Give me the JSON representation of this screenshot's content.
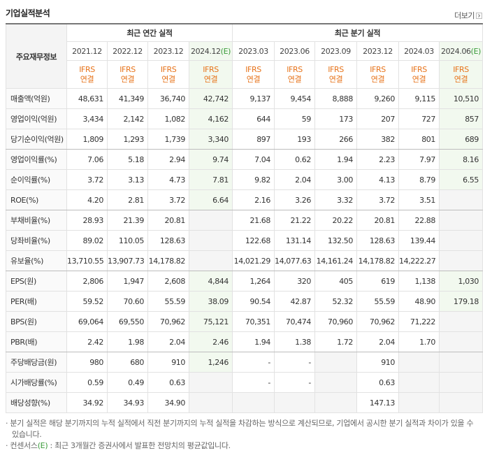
{
  "header": {
    "title": "기업실적분석",
    "more": "더보기"
  },
  "table": {
    "row_header": "주요재무정보",
    "groups": [
      {
        "label": "최근 연간 실적",
        "span": 4
      },
      {
        "label": "최근 분기 실적",
        "span": 6
      }
    ],
    "columns": [
      {
        "period": "2021.12",
        "standard": "IFRS",
        "scope": "연결"
      },
      {
        "period": "2022.12",
        "standard": "IFRS",
        "scope": "연결"
      },
      {
        "period": "2023.12",
        "standard": "IFRS",
        "scope": "연결"
      },
      {
        "period": "2024.12",
        "mark": "(E)",
        "standard": "IFRS",
        "scope": "연결"
      },
      {
        "period": "2023.03",
        "standard": "IFRS",
        "scope": "연결"
      },
      {
        "period": "2023.06",
        "standard": "IFRS",
        "scope": "연결"
      },
      {
        "period": "2023.09",
        "standard": "IFRS",
        "scope": "연결"
      },
      {
        "period": "2023.12",
        "standard": "IFRS",
        "scope": "연결"
      },
      {
        "period": "2024.03",
        "standard": "IFRS",
        "scope": "연결"
      },
      {
        "period": "2024.06",
        "mark": "(E)",
        "standard": "IFRS",
        "scope": "연결"
      }
    ],
    "rows": [
      {
        "label": "매출액(억원)",
        "values": [
          "48,631",
          "41,349",
          "36,740",
          "42,742",
          "9,137",
          "9,454",
          "8,888",
          "9,260",
          "9,115",
          "10,510"
        ]
      },
      {
        "label": "영업이익(억원)",
        "values": [
          "3,434",
          "2,142",
          "1,082",
          "4,162",
          "644",
          "59",
          "173",
          "207",
          "727",
          "857"
        ]
      },
      {
        "label": "당기순이익(억원)",
        "values": [
          "1,809",
          "1,293",
          "1,739",
          "3,340",
          "897",
          "193",
          "266",
          "382",
          "801",
          "689"
        ]
      },
      {
        "label": "영업이익률(%)",
        "values": [
          "7.06",
          "5.18",
          "2.94",
          "9.74",
          "7.04",
          "0.62",
          "1.94",
          "2.23",
          "7.97",
          "8.16"
        ]
      },
      {
        "label": "순이익률(%)",
        "values": [
          "3.72",
          "3.13",
          "4.73",
          "7.81",
          "9.82",
          "2.04",
          "3.00",
          "4.13",
          "8.79",
          "6.55"
        ]
      },
      {
        "label": "ROE(%)",
        "values": [
          "4.20",
          "2.81",
          "3.72",
          "6.64",
          "2.16",
          "3.26",
          "3.32",
          "3.72",
          "3.51",
          null
        ]
      },
      {
        "label": "부채비율(%)",
        "values": [
          "28.93",
          "21.39",
          "20.81",
          null,
          "21.68",
          "21.22",
          "20.22",
          "20.81",
          "22.88",
          null
        ]
      },
      {
        "label": "당좌비율(%)",
        "values": [
          "89.02",
          "110.05",
          "128.63",
          null,
          "122.68",
          "131.14",
          "132.50",
          "128.63",
          "139.44",
          null
        ]
      },
      {
        "label": "유보율(%)",
        "values": [
          "13,710.55",
          "13,907.73",
          "14,178.82",
          null,
          "14,021.29",
          "14,077.63",
          "14,161.24",
          "14,178.82",
          "14,222.27",
          null
        ]
      },
      {
        "label": "EPS(원)",
        "values": [
          "2,806",
          "1,947",
          "2,608",
          "4,844",
          "1,264",
          "320",
          "405",
          "619",
          "1,138",
          "1,030"
        ]
      },
      {
        "label": "PER(배)",
        "values": [
          "59.52",
          "70.60",
          "55.59",
          "38.09",
          "90.54",
          "42.87",
          "52.32",
          "55.59",
          "48.90",
          "179.18"
        ]
      },
      {
        "label": "BPS(원)",
        "values": [
          "69,064",
          "69,550",
          "70,962",
          "75,121",
          "70,351",
          "70,474",
          "70,960",
          "70,962",
          "71,222",
          null
        ]
      },
      {
        "label": "PBR(배)",
        "values": [
          "2.42",
          "1.98",
          "2.04",
          "2.46",
          "1.94",
          "1.38",
          "1.72",
          "2.04",
          "1.70",
          null
        ]
      },
      {
        "label": "주당배당금(원)",
        "values": [
          "980",
          "680",
          "910",
          "1,246",
          "-",
          "-",
          null,
          "910",
          null,
          null
        ]
      },
      {
        "label": "시가배당률(%)",
        "values": [
          "0.59",
          "0.49",
          "0.63",
          null,
          "-",
          "-",
          null,
          "0.63",
          null,
          null
        ]
      },
      {
        "label": "배당성향(%)",
        "values": [
          "34.92",
          "34.93",
          "34.90",
          null,
          null,
          null,
          null,
          "147.13",
          null,
          null
        ]
      }
    ],
    "group_ends": [
      2,
      5,
      8,
      12
    ]
  },
  "notes": [
    {
      "text": "분기 실적은 해당 분기까지의 누적 실적에서 직전 분기까지의 누적 실적을 차감하는 방식으로 계산되므로, 기업에서 공시한 분기 실적과 차이가 있을 수 있습니다."
    },
    {
      "lead": "컨센서스",
      "mark": "(E)",
      "text": " : 최근 3개월간 증권사에서 발표한 전망치의 평균값입니다."
    }
  ]
}
